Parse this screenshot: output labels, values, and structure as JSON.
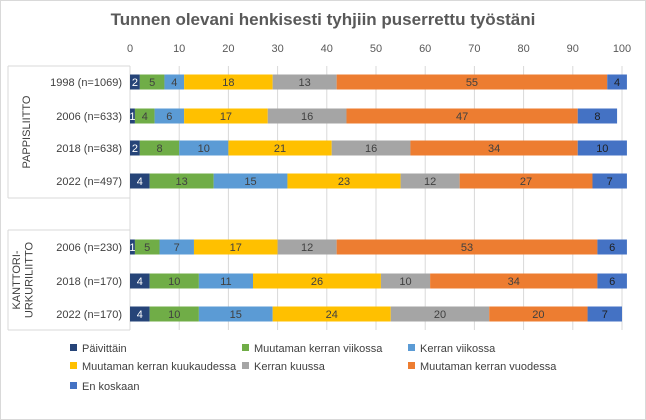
{
  "chart_data": {
    "type": "bar",
    "stacked": true,
    "orientation": "horizontal",
    "title": "Tunnen olevani henkisesti tyhjiin puserrettu työstäni",
    "xlim": [
      0,
      100
    ],
    "xticks": [
      0,
      10,
      20,
      30,
      40,
      50,
      60,
      70,
      80,
      90,
      100
    ],
    "grid": true,
    "legend_position": "bottom",
    "groups": [
      {
        "name": "PAPPISLIITTO",
        "categories": [
          "1998 (n=1069)",
          "2006 (n=633)",
          "2018 (n=638)",
          "2022 (n=497)"
        ]
      },
      {
        "name": "KANTTORI-URKURILIITTO",
        "categories": [
          "2006 (n=230)",
          "2018 (n=170)",
          "2022 (n=170)"
        ]
      }
    ],
    "series": [
      {
        "name": "Päivittäin",
        "color": "#264478",
        "values": [
          2,
          1,
          2,
          4,
          1,
          4,
          4
        ]
      },
      {
        "name": "Muutaman kerran viikossa",
        "color": "#70ad47",
        "values": [
          5,
          4,
          8,
          13,
          5,
          10,
          10
        ]
      },
      {
        "name": "Kerran viikossa",
        "color": "#5b9bd5",
        "values": [
          4,
          6,
          10,
          15,
          7,
          11,
          15
        ]
      },
      {
        "name": "Muutaman kerran kuukaudessa",
        "color": "#ffc000",
        "values": [
          18,
          17,
          21,
          23,
          17,
          26,
          24
        ]
      },
      {
        "name": "Kerran kuussa",
        "color": "#a5a5a5",
        "values": [
          13,
          16,
          16,
          12,
          12,
          10,
          20
        ]
      },
      {
        "name": "Muutaman kerran vuodessa",
        "color": "#ed7d31",
        "values": [
          55,
          47,
          34,
          27,
          53,
          34,
          20
        ]
      },
      {
        "name": "En koskaan",
        "color": "#4472c4",
        "values": [
          4,
          8,
          10,
          7,
          6,
          6,
          7
        ]
      }
    ]
  }
}
